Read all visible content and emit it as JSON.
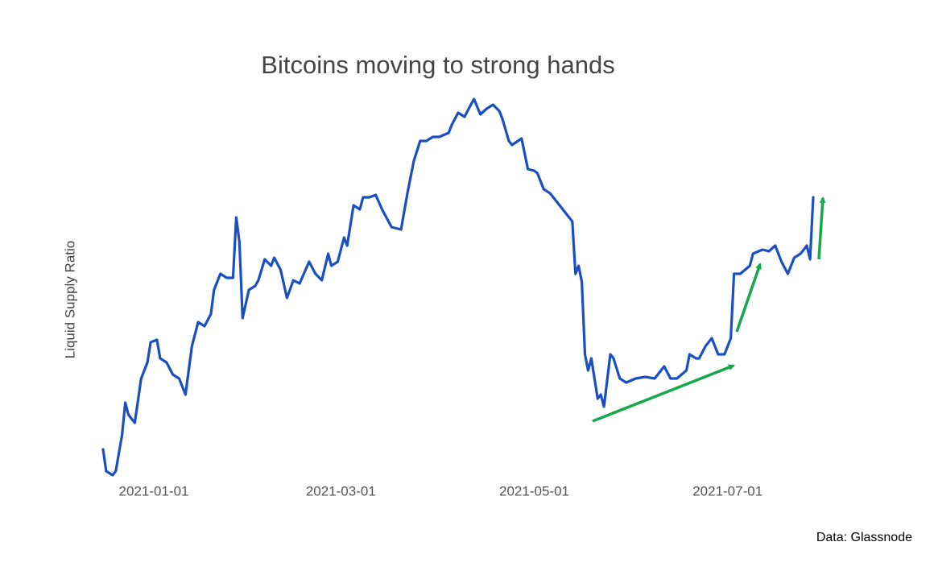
{
  "chart_data": {
    "type": "line",
    "title": "Bitcoins moving to strong hands",
    "y_label": "Liquid Supply Ratio",
    "source": "Data: Glassnode",
    "color": "#1a4fc4",
    "x": [
      "2020-12-16",
      "2020-12-17",
      "2020-12-19",
      "2020-12-20",
      "2020-12-22",
      "2020-12-23",
      "2020-12-24",
      "2020-12-26",
      "2020-12-28",
      "2020-12-30",
      "2020-12-31",
      "2021-01-02",
      "2021-01-03",
      "2021-01-05",
      "2021-01-07",
      "2021-01-09",
      "2021-01-11",
      "2021-01-13",
      "2021-01-15",
      "2021-01-17",
      "2021-01-19",
      "2021-01-20",
      "2021-01-22",
      "2021-01-24",
      "2021-01-26",
      "2021-01-27",
      "2021-01-28",
      "2021-01-29",
      "2021-01-31",
      "2021-02-02",
      "2021-02-03",
      "2021-02-05",
      "2021-02-07",
      "2021-02-08",
      "2021-02-10",
      "2021-02-12",
      "2021-02-14",
      "2021-02-16",
      "2021-02-19",
      "2021-02-21",
      "2021-02-23",
      "2021-02-25",
      "2021-02-26",
      "2021-02-28",
      "2021-03-02",
      "2021-03-03",
      "2021-03-05",
      "2021-03-07",
      "2021-03-08",
      "2021-03-10",
      "2021-03-12",
      "2021-03-14",
      "2021-03-17",
      "2021-03-20",
      "2021-03-22",
      "2021-03-24",
      "2021-03-26",
      "2021-03-28",
      "2021-03-30",
      "2021-04-01",
      "2021-04-04",
      "2021-04-05",
      "2021-04-07",
      "2021-04-09",
      "2021-04-11",
      "2021-04-12",
      "2021-04-14",
      "2021-04-16",
      "2021-04-18",
      "2021-04-20",
      "2021-04-21",
      "2021-04-23",
      "2021-04-24",
      "2021-04-27",
      "2021-04-29",
      "2021-05-01",
      "2021-05-02",
      "2021-05-04",
      "2021-05-06",
      "2021-05-08",
      "2021-05-11",
      "2021-05-13",
      "2021-05-14",
      "2021-05-15",
      "2021-05-16",
      "2021-05-17",
      "2021-05-18",
      "2021-05-19",
      "2021-05-21",
      "2021-05-22",
      "2021-05-23",
      "2021-05-25",
      "2021-05-26",
      "2021-05-28",
      "2021-05-30",
      "2021-06-02",
      "2021-06-05",
      "2021-06-08",
      "2021-06-10",
      "2021-06-11",
      "2021-06-13",
      "2021-06-15",
      "2021-06-18",
      "2021-06-19",
      "2021-06-21",
      "2021-06-22",
      "2021-06-24",
      "2021-06-26",
      "2021-06-28",
      "2021-06-30",
      "2021-07-02",
      "2021-07-03",
      "2021-07-05",
      "2021-07-08",
      "2021-07-09",
      "2021-07-12",
      "2021-07-14",
      "2021-07-16",
      "2021-07-18",
      "2021-07-20",
      "2021-07-22",
      "2021-07-24",
      "2021-07-26",
      "2021-07-27",
      "2021-07-28"
    ],
    "values": [
      8.4,
      3,
      2,
      3,
      12,
      20,
      17,
      15,
      26,
      30,
      35,
      35.6,
      31,
      30,
      27,
      26,
      22,
      34,
      40,
      39,
      42,
      48,
      52,
      51,
      51,
      66,
      60,
      41,
      48,
      49,
      50.4,
      55.6,
      54,
      56,
      53,
      46,
      50.4,
      49.6,
      55,
      52,
      50.4,
      57,
      54,
      55,
      61,
      59,
      69,
      68,
      71,
      71,
      71.6,
      68,
      63.6,
      63,
      72,
      80,
      85,
      85,
      86,
      86,
      87,
      89,
      92,
      91,
      94,
      95.4,
      91.6,
      93,
      94,
      92.4,
      90.4,
      85,
      84,
      85.6,
      78,
      77.6,
      77,
      73,
      72,
      70,
      67,
      65,
      52,
      54,
      50,
      32,
      28,
      31,
      21,
      22,
      19,
      32,
      31,
      26,
      25,
      26,
      26.4,
      26,
      28,
      29,
      26,
      26,
      28,
      32,
      31,
      31,
      34,
      36,
      32,
      32,
      36,
      52,
      52,
      54,
      57,
      58,
      57.6,
      59,
      55,
      52,
      56,
      57,
      59,
      55.6,
      71
    ],
    "xlim": [
      "2020-12-16",
      "2021-07-28"
    ],
    "xticks": [
      "2021-01-01",
      "2021-03-01",
      "2021-05-01",
      "2021-07-01"
    ],
    "ylim": [
      0,
      100
    ]
  }
}
